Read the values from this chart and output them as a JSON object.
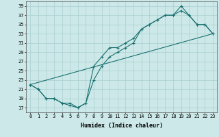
{
  "xlabel": "Humidex (Indice chaleur)",
  "background_color": "#cce8e8",
  "grid_color": "#aacfcf",
  "line_color": "#1a7070",
  "xlim": [
    -0.5,
    23.5
  ],
  "ylim": [
    16,
    40
  ],
  "xticks": [
    0,
    1,
    2,
    3,
    4,
    5,
    6,
    7,
    8,
    9,
    10,
    11,
    12,
    13,
    14,
    15,
    16,
    17,
    18,
    19,
    20,
    21,
    22,
    23
  ],
  "yticks": [
    17,
    19,
    21,
    23,
    25,
    27,
    29,
    31,
    33,
    35,
    37,
    39
  ],
  "line1_x": [
    0,
    1,
    2,
    3,
    4,
    5,
    6,
    7,
    8,
    9,
    10,
    11,
    12,
    13,
    14,
    15,
    16,
    17,
    18,
    19,
    20,
    21,
    22,
    23
  ],
  "line1_y": [
    22,
    21,
    19,
    19,
    18,
    18,
    17,
    18,
    23,
    26,
    28,
    29,
    30,
    31,
    34,
    35,
    36,
    37,
    37,
    39,
    37,
    35,
    35,
    33
  ],
  "line2_x": [
    0,
    1,
    2,
    3,
    4,
    5,
    6,
    7,
    8,
    9,
    10,
    11,
    12,
    13,
    14,
    15,
    16,
    17,
    18,
    19,
    20,
    21,
    22,
    23
  ],
  "line2_y": [
    22,
    21,
    19,
    19,
    18,
    17.5,
    17,
    18,
    26,
    28,
    30,
    30,
    31,
    32,
    34,
    35,
    36,
    37,
    37,
    38,
    37,
    35,
    35,
    33
  ],
  "line3_x": [
    0,
    23
  ],
  "line3_y": [
    22,
    33
  ],
  "tick_fontsize": 5,
  "xlabel_fontsize": 6,
  "xlabel_fontweight": "bold"
}
